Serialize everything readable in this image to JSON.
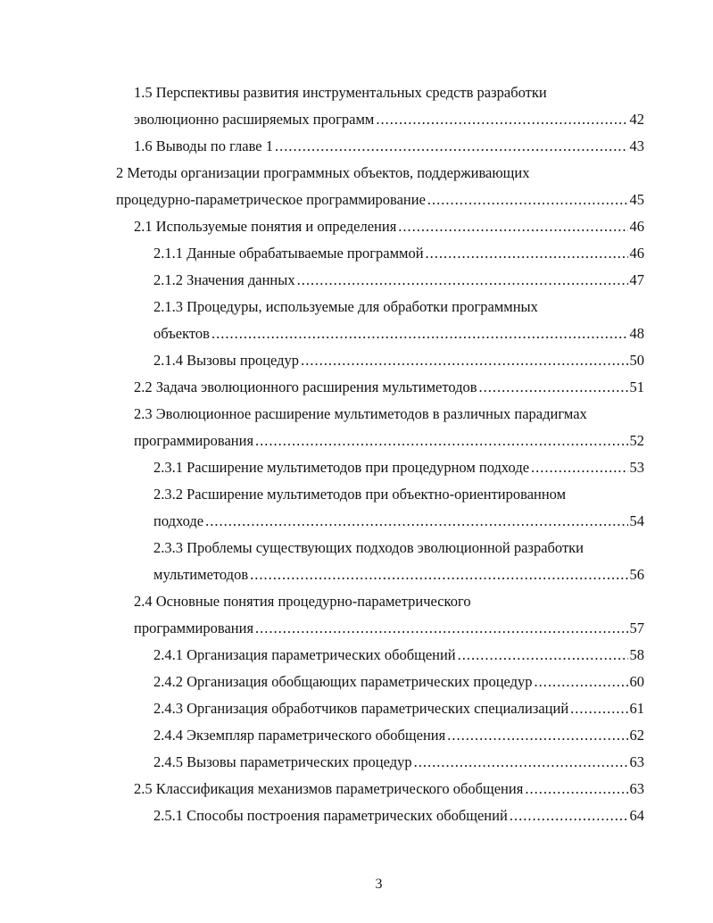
{
  "toc": [
    {
      "level": 2,
      "lines": [
        "1.5 Перспективы развития инструментальных средств разработки",
        "эволюционно расширяемых программ"
      ],
      "page": "42"
    },
    {
      "level": 2,
      "lines": [
        "1.6 Выводы по главе 1"
      ],
      "page": "43"
    },
    {
      "level": 1,
      "lines": [
        "2 Методы организации программных объектов, поддерживающих",
        "процедурно-параметрическое программирование"
      ],
      "page": "45"
    },
    {
      "level": 2,
      "lines": [
        "2.1 Используемые понятия и определения"
      ],
      "page": "46"
    },
    {
      "level": 3,
      "lines": [
        "2.1.1 Данные обрабатываемые программой"
      ],
      "page": "46"
    },
    {
      "level": 3,
      "lines": [
        "2.1.2 Значения данных"
      ],
      "page": "47"
    },
    {
      "level": 3,
      "lines": [
        "2.1.3 Процедуры, используемые для обработки программных",
        "объектов"
      ],
      "page": "48"
    },
    {
      "level": 3,
      "lines": [
        "2.1.4 Вызовы процедур"
      ],
      "page": "50"
    },
    {
      "level": 2,
      "lines": [
        "2.2 Задача эволюционного расширения мультиметодов"
      ],
      "page": "51"
    },
    {
      "level": 2,
      "lines": [
        "2.3 Эволюционное расширение мультиметодов в различных парадигмах",
        "программирования"
      ],
      "page": "52"
    },
    {
      "level": 3,
      "lines": [
        "2.3.1 Расширение мультиметодов при процедурном подходе"
      ],
      "page": "53"
    },
    {
      "level": 3,
      "lines": [
        "2.3.2 Расширение мультиметодов при объектно-ориентированном",
        "подходе"
      ],
      "page": "54"
    },
    {
      "level": 3,
      "lines": [
        "2.3.3 Проблемы существующих подходов эволюционной разработки",
        "мультиметодов"
      ],
      "page": "56"
    },
    {
      "level": 2,
      "lines": [
        "2.4 Основные понятия процедурно-параметрического",
        "программирования"
      ],
      "page": "57"
    },
    {
      "level": 3,
      "lines": [
        "2.4.1 Организация параметрических обобщений"
      ],
      "page": "58"
    },
    {
      "level": 3,
      "lines": [
        "2.4.2 Организация обобщающих параметрических процедур"
      ],
      "page": "60"
    },
    {
      "level": 3,
      "lines": [
        "2.4.3 Организация обработчиков параметрических специализаций"
      ],
      "page": "61"
    },
    {
      "level": 3,
      "lines": [
        "2.4.4 Экземпляр параметрического обобщения"
      ],
      "page": "62"
    },
    {
      "level": 3,
      "lines": [
        "2.4.5 Вызовы параметрических процедур"
      ],
      "page": "63"
    },
    {
      "level": 2,
      "lines": [
        "2.5 Классификация механизмов параметрического обобщения"
      ],
      "page": "63"
    },
    {
      "level": 3,
      "lines": [
        "2.5.1 Способы построения параметрических обобщений"
      ],
      "page": "64"
    }
  ],
  "page_number": "3"
}
